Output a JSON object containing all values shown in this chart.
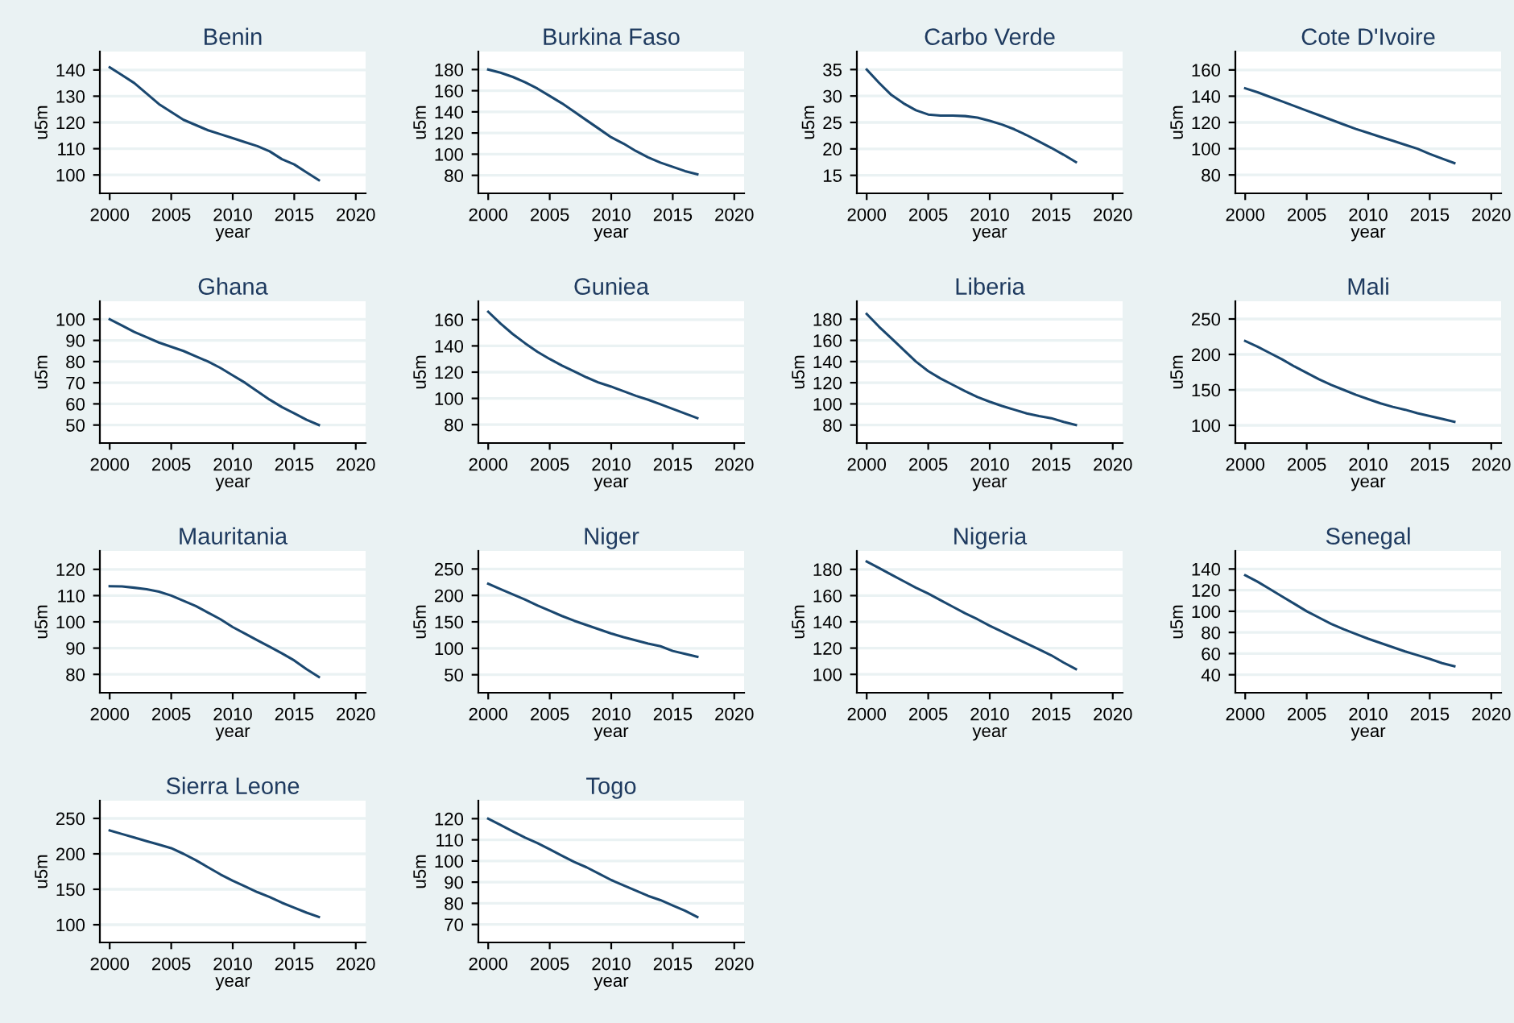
{
  "chart_data": [
    {
      "type": "line",
      "title": "Benin",
      "xlabel": "year",
      "ylabel": "u5m",
      "x": [
        2000,
        2001,
        2002,
        2003,
        2004,
        2005,
        2006,
        2007,
        2008,
        2009,
        2010,
        2011,
        2012,
        2013,
        2014,
        2015,
        2016,
        2017
      ],
      "series": [
        {
          "color": "#1a476f",
          "values": [
            141,
            138,
            135,
            131,
            127,
            124,
            121,
            119,
            117,
            115.5,
            114,
            112.5,
            111,
            109,
            106,
            104,
            101,
            98
          ]
        }
      ],
      "xlim": [
        1999.2,
        2020.8
      ],
      "xticks": [
        2000,
        2005,
        2010,
        2015,
        2020
      ],
      "ylim": [
        93,
        147
      ],
      "yticks": [
        100,
        110,
        120,
        130,
        140
      ],
      "grid": "y"
    },
    {
      "type": "line",
      "title": "Burkina Faso",
      "xlabel": "year",
      "ylabel": "u5m",
      "x": [
        2000,
        2001,
        2002,
        2003,
        2004,
        2005,
        2006,
        2007,
        2008,
        2009,
        2010,
        2011,
        2012,
        2013,
        2014,
        2015,
        2016,
        2017
      ],
      "series": [
        {
          "color": "#1a476f",
          "values": [
            180,
            177,
            173,
            168,
            162,
            155,
            148,
            140,
            132,
            124,
            116,
            110,
            103,
            97,
            92,
            88,
            84,
            81
          ]
        }
      ],
      "xlim": [
        1999.2,
        2020.8
      ],
      "xticks": [
        2000,
        2005,
        2010,
        2015,
        2020
      ],
      "ylim": [
        63,
        197
      ],
      "yticks": [
        80,
        100,
        120,
        140,
        160,
        180
      ],
      "grid": "y"
    },
    {
      "type": "line",
      "title": "Carbo Verde",
      "xlabel": "year",
      "ylabel": "u5m",
      "x": [
        2000,
        2001,
        2002,
        2003,
        2004,
        2005,
        2006,
        2007,
        2008,
        2009,
        2010,
        2011,
        2012,
        2013,
        2014,
        2015,
        2016,
        2017
      ],
      "series": [
        {
          "color": "#1a476f",
          "values": [
            35,
            32.5,
            30.2,
            28.6,
            27.3,
            26.5,
            26.3,
            26.3,
            26.2,
            25.9,
            25.3,
            24.6,
            23.7,
            22.6,
            21.4,
            20.2,
            18.9,
            17.5
          ]
        }
      ],
      "xlim": [
        1999.2,
        2020.8
      ],
      "xticks": [
        2000,
        2005,
        2010,
        2015,
        2020
      ],
      "ylim": [
        11.6,
        38.4
      ],
      "yticks": [
        15,
        20,
        25,
        30,
        35
      ],
      "grid": "y"
    },
    {
      "type": "line",
      "title": "Cote D'Ivoire",
      "xlabel": "year",
      "ylabel": "u5m",
      "x": [
        2000,
        2001,
        2002,
        2003,
        2004,
        2005,
        2006,
        2007,
        2008,
        2009,
        2010,
        2011,
        2012,
        2013,
        2014,
        2015,
        2016,
        2017
      ],
      "series": [
        {
          "color": "#1a476f",
          "values": [
            146,
            143,
            139.5,
            136,
            132.5,
            129,
            125.5,
            122,
            118.5,
            115,
            112,
            109,
            106,
            103,
            100,
            96,
            92.5,
            89
          ]
        }
      ],
      "xlim": [
        1999.2,
        2020.8
      ],
      "xticks": [
        2000,
        2005,
        2010,
        2015,
        2020
      ],
      "ylim": [
        66,
        174
      ],
      "yticks": [
        80,
        100,
        120,
        140,
        160
      ],
      "grid": "y"
    },
    {
      "type": "line",
      "title": "Ghana",
      "xlabel": "year",
      "ylabel": "u5m",
      "x": [
        2000,
        2001,
        2002,
        2003,
        2004,
        2005,
        2006,
        2007,
        2008,
        2009,
        2010,
        2011,
        2012,
        2013,
        2014,
        2015,
        2016,
        2017
      ],
      "series": [
        {
          "color": "#1a476f",
          "values": [
            100,
            97,
            94,
            91.5,
            89,
            87,
            85,
            82.5,
            80,
            77,
            73.5,
            70,
            66,
            62,
            58.5,
            55.5,
            52.5,
            50
          ]
        }
      ],
      "xlim": [
        1999.2,
        2020.8
      ],
      "xticks": [
        2000,
        2005,
        2010,
        2015,
        2020
      ],
      "ylim": [
        41.5,
        108.5
      ],
      "yticks": [
        50,
        60,
        70,
        80,
        90,
        100
      ],
      "grid": "y"
    },
    {
      "type": "line",
      "title": "Guniea",
      "xlabel": "year",
      "ylabel": "u5m",
      "x": [
        2000,
        2001,
        2002,
        2003,
        2004,
        2005,
        2006,
        2007,
        2008,
        2009,
        2010,
        2011,
        2012,
        2013,
        2014,
        2015,
        2016,
        2017
      ],
      "series": [
        {
          "color": "#1a476f",
          "values": [
            166,
            157,
            149,
            142,
            135.5,
            130,
            125,
            120.5,
            116,
            112,
            109,
            105.5,
            102,
            99,
            95.5,
            92,
            88.5,
            85
          ]
        }
      ],
      "xlim": [
        1999.2,
        2020.8
      ],
      "xticks": [
        2000,
        2005,
        2010,
        2015,
        2020
      ],
      "ylim": [
        66,
        174
      ],
      "yticks": [
        80,
        100,
        120,
        140,
        160
      ],
      "grid": "y"
    },
    {
      "type": "line",
      "title": "Liberia",
      "xlabel": "year",
      "ylabel": "u5m",
      "x": [
        2000,
        2001,
        2002,
        2003,
        2004,
        2005,
        2006,
        2007,
        2008,
        2009,
        2010,
        2011,
        2012,
        2013,
        2014,
        2015,
        2016,
        2017
      ],
      "series": [
        {
          "color": "#1a476f",
          "values": [
            185,
            173,
            162,
            151,
            140,
            131,
            124,
            118,
            112,
            106.5,
            102,
            98,
            94.5,
            91,
            88.5,
            86.5,
            83,
            80
          ]
        }
      ],
      "xlim": [
        1999.2,
        2020.8
      ],
      "xticks": [
        2000,
        2005,
        2010,
        2015,
        2020
      ],
      "ylim": [
        63,
        197
      ],
      "yticks": [
        80,
        100,
        120,
        140,
        160,
        180
      ],
      "grid": "y"
    },
    {
      "type": "line",
      "title": "Mali",
      "xlabel": "year",
      "ylabel": "u5m",
      "x": [
        2000,
        2001,
        2002,
        2003,
        2004,
        2005,
        2006,
        2007,
        2008,
        2009,
        2010,
        2011,
        2012,
        2013,
        2014,
        2015,
        2016,
        2017
      ],
      "series": [
        {
          "color": "#1a476f",
          "values": [
            219,
            211,
            202,
            193,
            183,
            174,
            165,
            157,
            150,
            143,
            137,
            131,
            126,
            122,
            117,
            113,
            109,
            105
          ]
        }
      ],
      "xlim": [
        1999.2,
        2020.8
      ],
      "xticks": [
        2000,
        2005,
        2010,
        2015,
        2020
      ],
      "ylim": [
        75,
        275
      ],
      "yticks": [
        100,
        150,
        200,
        250
      ],
      "grid": "y"
    },
    {
      "type": "line",
      "title": "Mauritania",
      "xlabel": "year",
      "ylabel": "u5m",
      "x": [
        2000,
        2001,
        2002,
        2003,
        2004,
        2005,
        2006,
        2007,
        2008,
        2009,
        2010,
        2011,
        2012,
        2013,
        2014,
        2015,
        2016,
        2017
      ],
      "series": [
        {
          "color": "#1a476f",
          "values": [
            113.6,
            113.5,
            113,
            112.4,
            111.5,
            110,
            108,
            106,
            103.5,
            101,
            98,
            95.5,
            93,
            90.5,
            88,
            85.3,
            82,
            79
          ]
        }
      ],
      "xlim": [
        1999.2,
        2020.8
      ],
      "xticks": [
        2000,
        2005,
        2010,
        2015,
        2020
      ],
      "ylim": [
        73,
        127
      ],
      "yticks": [
        80,
        90,
        100,
        110,
        120
      ],
      "grid": "y"
    },
    {
      "type": "line",
      "title": "Niger",
      "xlabel": "year",
      "ylabel": "u5m",
      "x": [
        2000,
        2001,
        2002,
        2003,
        2004,
        2005,
        2006,
        2007,
        2008,
        2009,
        2010,
        2011,
        2012,
        2013,
        2014,
        2015,
        2016,
        2017
      ],
      "series": [
        {
          "color": "#1a476f",
          "values": [
            222,
            212,
            202,
            192,
            181,
            171,
            161,
            152,
            144,
            136,
            128,
            121,
            115,
            109,
            104,
            95,
            89.5,
            84
          ]
        }
      ],
      "xlim": [
        1999.2,
        2020.8
      ],
      "xticks": [
        2000,
        2005,
        2010,
        2015,
        2020
      ],
      "ylim": [
        16,
        284
      ],
      "yticks": [
        50,
        100,
        150,
        200,
        250
      ],
      "grid": "y"
    },
    {
      "type": "line",
      "title": "Nigeria",
      "xlabel": "year",
      "ylabel": "u5m",
      "x": [
        2000,
        2001,
        2002,
        2003,
        2004,
        2005,
        2006,
        2007,
        2008,
        2009,
        2010,
        2011,
        2012,
        2013,
        2014,
        2015,
        2016,
        2017
      ],
      "series": [
        {
          "color": "#1a476f",
          "values": [
            186,
            181,
            176,
            171,
            166,
            161.5,
            156.5,
            151.5,
            146.5,
            142,
            137,
            132.5,
            128,
            123.5,
            119,
            114.5,
            109,
            104
          ]
        }
      ],
      "xlim": [
        1999.2,
        2020.8
      ],
      "xticks": [
        2000,
        2005,
        2010,
        2015,
        2020
      ],
      "ylim": [
        86,
        194
      ],
      "yticks": [
        100,
        120,
        140,
        160,
        180
      ],
      "grid": "y"
    },
    {
      "type": "line",
      "title": "Senegal",
      "xlabel": "year",
      "ylabel": "u5m",
      "x": [
        2000,
        2001,
        2002,
        2003,
        2004,
        2005,
        2006,
        2007,
        2008,
        2009,
        2010,
        2011,
        2012,
        2013,
        2014,
        2015,
        2016,
        2017
      ],
      "series": [
        {
          "color": "#1a476f",
          "values": [
            134,
            128,
            121,
            114,
            107,
            100,
            94,
            88,
            83,
            78.5,
            74,
            70,
            66,
            62,
            58.5,
            55,
            51,
            48
          ]
        }
      ],
      "xlim": [
        1999.2,
        2020.8
      ],
      "xticks": [
        2000,
        2005,
        2010,
        2015,
        2020
      ],
      "ylim": [
        23,
        157
      ],
      "yticks": [
        40,
        60,
        80,
        100,
        120,
        140
      ],
      "grid": "y"
    },
    {
      "type": "line",
      "title": "Sierra Leone",
      "xlabel": "year",
      "ylabel": "u5m",
      "x": [
        2000,
        2001,
        2002,
        2003,
        2004,
        2005,
        2006,
        2007,
        2008,
        2009,
        2010,
        2011,
        2012,
        2013,
        2014,
        2015,
        2016,
        2017
      ],
      "series": [
        {
          "color": "#1a476f",
          "values": [
            233,
            228,
            223,
            218,
            213,
            208,
            200,
            191,
            181,
            171,
            162,
            154,
            146,
            139,
            131,
            124,
            117,
            111
          ]
        }
      ],
      "xlim": [
        1999.2,
        2020.8
      ],
      "xticks": [
        2000,
        2005,
        2010,
        2015,
        2020
      ],
      "ylim": [
        75,
        275
      ],
      "yticks": [
        100,
        150,
        200,
        250
      ],
      "grid": "y"
    },
    {
      "type": "line",
      "title": "Togo",
      "xlabel": "year",
      "ylabel": "u5m",
      "x": [
        2000,
        2001,
        2002,
        2003,
        2004,
        2005,
        2006,
        2007,
        2008,
        2009,
        2010,
        2011,
        2012,
        2013,
        2014,
        2015,
        2016,
        2017
      ],
      "series": [
        {
          "color": "#1a476f",
          "values": [
            120,
            117,
            114,
            111,
            108.5,
            105.5,
            102.5,
            99.5,
            97,
            94,
            91,
            88.5,
            86,
            83.5,
            81.5,
            79,
            76.5,
            73.5
          ]
        }
      ],
      "xlim": [
        1999.2,
        2020.8
      ],
      "xticks": [
        2000,
        2005,
        2010,
        2015,
        2020
      ],
      "ylim": [
        61.5,
        128.5
      ],
      "yticks": [
        70,
        80,
        90,
        100,
        110,
        120
      ],
      "grid": "y"
    }
  ]
}
